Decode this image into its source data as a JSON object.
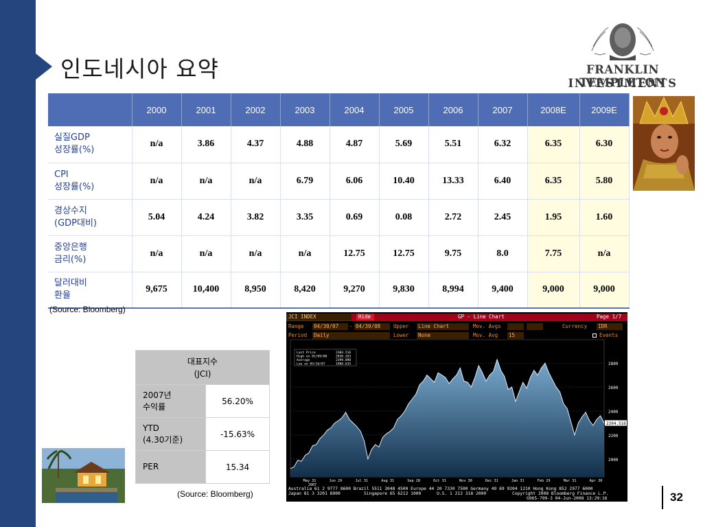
{
  "slide": {
    "title": "인도네시아 요약",
    "page_number": "32",
    "brand": {
      "line1": "FRANKLIN TEMPLETON",
      "line2": "INVESTMENTS"
    }
  },
  "colors": {
    "accent_blue": "#25457f",
    "header_blue": "#4f6db4",
    "label_blue": "#27408f",
    "forecast_yellow": "#fffce0"
  },
  "econ_table": {
    "columns": [
      "",
      "2000",
      "2001",
      "2002",
      "2003",
      "2004",
      "2005",
      "2006",
      "2007",
      "2008E",
      "2009E"
    ],
    "rows": [
      {
        "label1": "실질GDP",
        "label2": "성장률(%)",
        "values": [
          "n/a",
          "3.86",
          "4.37",
          "4.88",
          "4.87",
          "5.69",
          "5.51",
          "6.32",
          "6.35",
          "6.30"
        ]
      },
      {
        "label1": "CPI",
        "label2": "성장률(%)",
        "values": [
          "n/a",
          "n/a",
          "n/a",
          "6.79",
          "6.06",
          "10.40",
          "13.33",
          "6.40",
          "6.35",
          "5.80"
        ]
      },
      {
        "label1": "경상수지",
        "label2": "(GDP대비)",
        "values": [
          "5.04",
          "4.24",
          "3.82",
          "3.35",
          "0.69",
          "0.08",
          "2.72",
          "2.45",
          "1.95",
          "1.60"
        ]
      },
      {
        "label1": "중앙은행",
        "label2": "금리(%)",
        "values": [
          "n/a",
          "n/a",
          "n/a",
          "n/a",
          "12.75",
          "12.75",
          "9.75",
          "8.0",
          "7.75",
          "n/a"
        ]
      },
      {
        "label1": "달러대비",
        "label2": "환율",
        "values": [
          "9,675",
          "10,400",
          "8,950",
          "8,420",
          "9,270",
          "9,830",
          "8,994",
          "9,400",
          "9,000",
          "9,000"
        ]
      }
    ],
    "source": "(Source: Bloomberg)"
  },
  "jci_table": {
    "header1": "대표지수",
    "header2": "(JCI)",
    "rows": [
      {
        "k1": "2007년",
        "k2": "수익률",
        "v": "56.20%"
      },
      {
        "k1": "YTD",
        "k2": "(4.30기준)",
        "v": "-15.63%"
      },
      {
        "k1": "PER",
        "k2": "",
        "v": "15.34"
      }
    ],
    "source": "(Source: Bloomberg)"
  },
  "bloomberg": {
    "ticker": "JCI INDEX",
    "hide": "Hide",
    "title": "GP - Line Chart",
    "page": "Page 1/7",
    "range_label": "Range",
    "range_from": "04/30/07",
    "range_to": "04/30/08",
    "upper_label": "Upper",
    "upper_value": "Line Chart",
    "mov_avgs_label": "Mov. Avgs",
    "currency_label": "Currency",
    "currency_value": "IDR",
    "period_label": "Period",
    "period_value": "Daily",
    "lower_label": "Lower",
    "lower_value": "None",
    "mov_avg_label": "Mov. Avg",
    "mov_avg_value": "15",
    "events_label": "Events",
    "stats": [
      {
        "k": "Last Price",
        "v": "2304.516"
      },
      {
        "k": "High on 01/09/08",
        "v": "2830.263"
      },
      {
        "k": "Average",
        "v": "2399.890"
      },
      {
        "k": "Low on 05/10/07",
        "v": "1908.635"
      }
    ],
    "year_label": "2007",
    "last_price_label": "2304.516",
    "footer1": "Australia 61 2 9777 8600 Brazil 5511 3048 4500 Europe 44 20 7330 7500 Germany 49 69 9204 1210 Hong Kong 852 2977 6000",
    "footer2": "Japan 81 3 3201 8900         Singapore 65 6212 1000      U.S. 1 212 318 2000          Copyright 2008 Bloomberg Finance L.P.",
    "footer3": "G965-799-3 04-Jun-2008 13:29:16"
  },
  "chart_data": {
    "type": "line",
    "title": "GP - Line Chart",
    "ylim": [
      1850,
      2950
    ],
    "y_ticks": [
      2000,
      2200,
      2400,
      2600,
      2800
    ],
    "x_ticks": [
      "May 31",
      "Jun 29",
      "Jul 31",
      "Aug 31",
      "Sep 28",
      "Oct 31",
      "Nov 30",
      "Dec 31",
      "Jan 31",
      "Feb 29",
      "Mar 31",
      "Apr 30"
    ],
    "series": [
      {
        "values": [
          1920,
          1935,
          1990,
          1980,
          2030,
          2050,
          2110,
          2120,
          2170,
          2200,
          2240,
          2260,
          2300,
          2320,
          2345,
          2390,
          2330,
          2300,
          2270,
          2230,
          2150,
          2000,
          2080,
          2120,
          2100,
          2180,
          2210,
          2230,
          2260,
          2330,
          2360,
          2400,
          2460,
          2500,
          2540,
          2620,
          2650,
          2700,
          2670,
          2640,
          2720,
          2700,
          2680,
          2630,
          2670,
          2700,
          2760,
          2650,
          2640,
          2600,
          2680,
          2780,
          2720,
          2650,
          2700,
          2730,
          2830,
          2740,
          2690,
          2580,
          2600,
          2480,
          2560,
          2640,
          2590,
          2680,
          2740,
          2700,
          2760,
          2800,
          2720,
          2660,
          2600,
          2560,
          2460,
          2420,
          2310,
          2200,
          2300,
          2350,
          2390,
          2320,
          2280,
          2330,
          2360,
          2300
        ]
      }
    ]
  }
}
